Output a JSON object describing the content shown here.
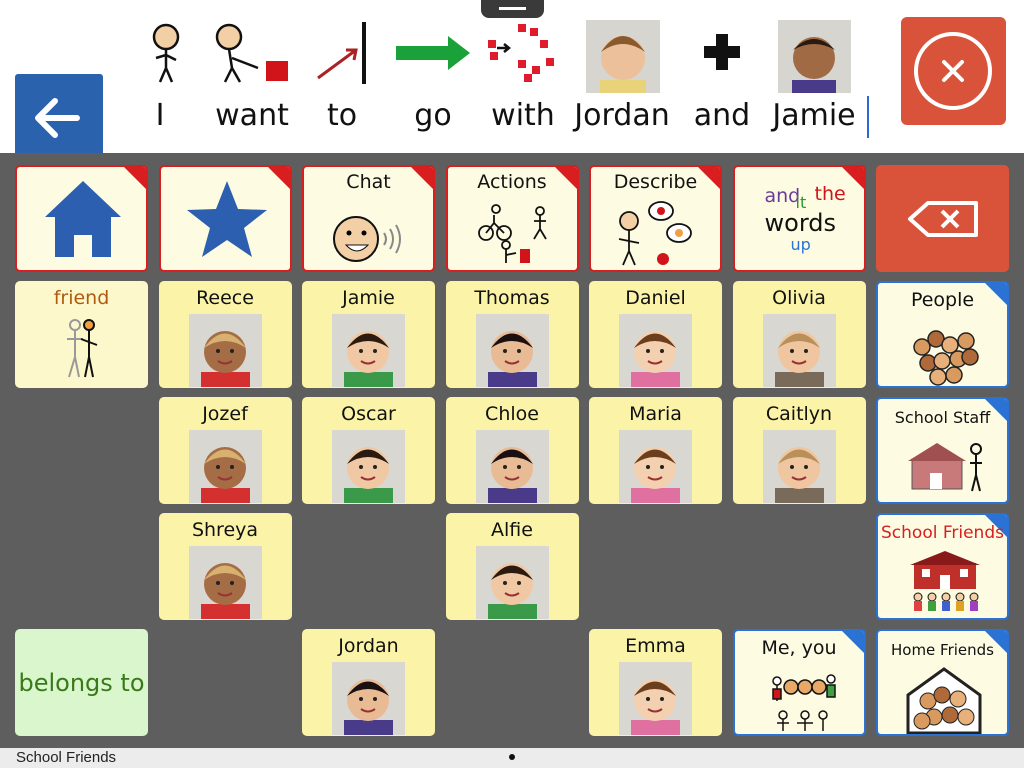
{
  "sentence_bar": {
    "words": [
      "I",
      "want",
      "to",
      "go",
      "with",
      "Jordan",
      "and",
      "Jamie"
    ]
  },
  "grid": {
    "row_1": [
      "Chat",
      "Actions",
      "Describe"
    ],
    "words_symbol": [
      "and",
      "it",
      "the",
      "words",
      "up"
    ],
    "row_2": [
      "friend",
      "Reece",
      "Jamie",
      "Thomas",
      "Daniel",
      "Olivia",
      "People"
    ],
    "row_3": [
      "Jozef",
      "Oscar",
      "Chloe",
      "Maria",
      "Caitlyn",
      "School Staff"
    ],
    "row_4": [
      "Shreya",
      "Alfie",
      "School Friends"
    ],
    "row_5": [
      "belongs to",
      "Jordan",
      "Emma",
      "Me, you",
      "Home Friends"
    ]
  },
  "status_bar": {
    "page_name": "School Friends"
  }
}
